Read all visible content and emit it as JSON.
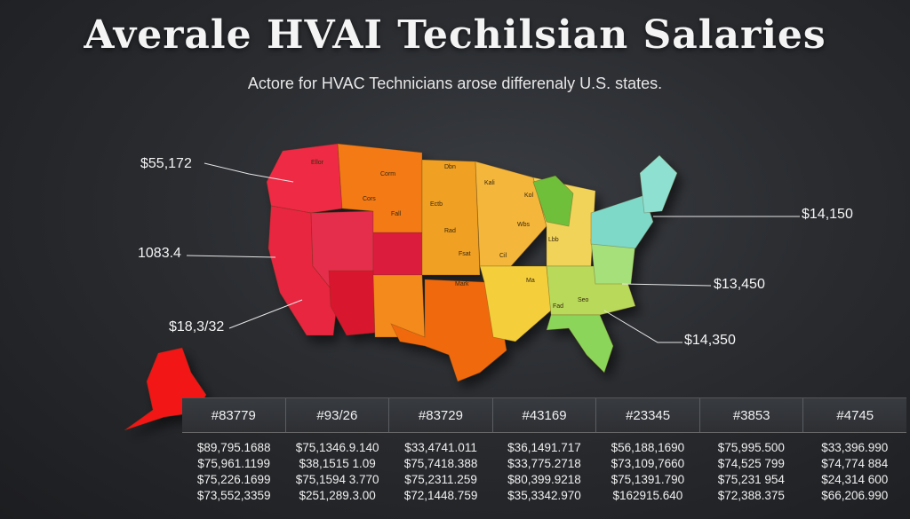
{
  "header": {
    "title": "Averale HVAI Techilsian Salaries",
    "subtitle": "Actore for HVAC Technicians arose differenaly U.S. states."
  },
  "map": {
    "callouts": [
      {
        "id": "nw",
        "label": "$55,172"
      },
      {
        "id": "w",
        "label": "1083.4"
      },
      {
        "id": "sw",
        "label": "$18,3/32"
      },
      {
        "id": "ne",
        "label": "$14,150"
      },
      {
        "id": "e",
        "label": "$13,450"
      },
      {
        "id": "se",
        "label": "$14,350"
      }
    ],
    "state_labels": [
      "Ellor",
      "Corm",
      "Cors",
      "Fall",
      "Dbn",
      "Ectb",
      "Rad",
      "Fsat",
      "Mark",
      "Kali",
      "Kol",
      "Wbs",
      "Lbb",
      "Cil",
      "Ma",
      "Fad",
      "Seo"
    ],
    "colors": {
      "red": "#ef2a45",
      "crimson": "#dc1f3e",
      "orange": "#f47a12",
      "amber": "#f5a623",
      "yellow": "#f4cf3a",
      "green": "#8bd65a",
      "teal": "#7fd9c8",
      "lime": "#7cc442"
    }
  },
  "table": {
    "headers": [
      "#83779",
      "#93/26",
      "#83729",
      "#43169",
      "#23345",
      "#3853",
      "#4745"
    ],
    "columns": [
      [
        "$89,795.1688",
        "$75,961.1199",
        "$75,226.1699",
        "$73,552,3359"
      ],
      [
        "$75,1346.9.140",
        "$38,1515 1.09",
        "$75,1594 3.770",
        "$251,289.3.00"
      ],
      [
        "$33,4741.011",
        "$75,7418.388",
        "$75,2311.259",
        "$72,1448.759"
      ],
      [
        "$36,1491.717",
        "$33,775.2718",
        "$80,399.9218",
        "$35,3342.970"
      ],
      [
        "$56,188,1690",
        "$73,109,7660",
        "$75,1391.790",
        "$162915.640"
      ],
      [
        "$75,995.500",
        "$74,525 799",
        "$75,231 954",
        "$72,388.375"
      ],
      [
        "$33,396.990",
        "$74,774 884",
        "$24,314 600",
        "$66,206.990"
      ]
    ]
  }
}
